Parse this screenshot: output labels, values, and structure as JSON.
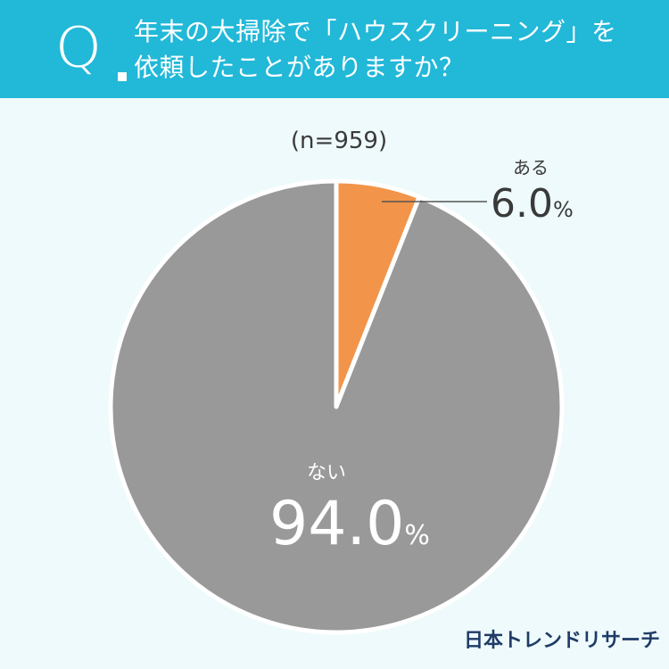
{
  "header": {
    "q_mark": "Q",
    "question_line1": "年末の大掃除で「ハウスクリーニング」を",
    "question_line2": "依頼したことがありますか？"
  },
  "sample_label": "(n=959)",
  "colors": {
    "header_bg": "#22b8d8",
    "background": "#eefafc",
    "aru": "#f2954a",
    "nai": "#999999"
  },
  "chart_data": {
    "type": "pie",
    "title": "年末の大掃除で「ハウスクリーニング」を依頼したことがありますか？",
    "n": 959,
    "categories": [
      "ある",
      "ない"
    ],
    "values": [
      6.0,
      94.0
    ],
    "unit": "%",
    "labels": [
      {
        "name": "ある",
        "value_text": "6.0",
        "unit": "%"
      },
      {
        "name": "ない",
        "value_text": "94.0",
        "unit": "%"
      }
    ]
  },
  "logo_text": "日本トレンドリサーチ"
}
